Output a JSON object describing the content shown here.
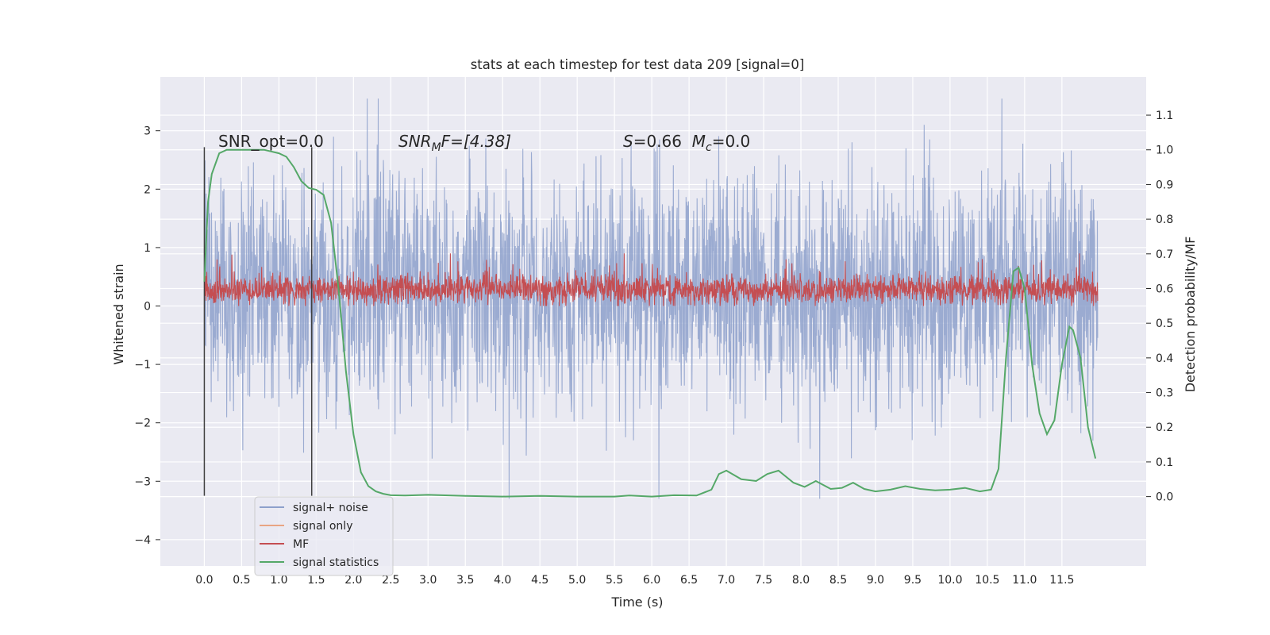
{
  "chart_data": {
    "type": "line",
    "title": "stats at each timestep for test data 209 [signal=0]",
    "xlabel": "Time (s)",
    "ylabel": "Whitened strain",
    "ylabel_right": "Detection probability/MF",
    "xlim": [
      -0.59,
      12.63
    ],
    "ylim": [
      -4.45,
      3.92
    ],
    "ylim_right": [
      -0.2,
      1.21
    ],
    "x_ticks": [
      0.0,
      0.5,
      1.0,
      1.5,
      2.0,
      2.5,
      3.0,
      3.5,
      4.0,
      4.5,
      5.0,
      5.5,
      6.0,
      6.5,
      7.0,
      7.5,
      8.0,
      8.5,
      9.0,
      9.5,
      10.0,
      10.5,
      11.0,
      11.5
    ],
    "x_tick_labels": [
      "0.0",
      "0.5",
      "1.0",
      "1.5",
      "2.0",
      "2.5",
      "3.0",
      "3.5",
      "4.0",
      "4.5",
      "5.0",
      "5.5",
      "6.0",
      "6.5",
      "7.0",
      "7.5",
      "8.0",
      "8.5",
      "9.0",
      "9.5",
      "10.0",
      "10.5",
      "11.0",
      "11.5"
    ],
    "y_ticks": [
      3,
      2,
      1,
      0,
      -1,
      -2,
      -3,
      -4
    ],
    "y_tick_labels": [
      "3",
      "2",
      "1",
      "0",
      "−1",
      "−2",
      "−3",
      "−4"
    ],
    "y_right_ticks": [
      1.1,
      1.0,
      0.9,
      0.8,
      0.7,
      0.6,
      0.5,
      0.4,
      0.3,
      0.2,
      0.1,
      0.0
    ],
    "y_right_tick_labels": [
      "1.1",
      "1.0",
      "0.9",
      "0.8",
      "0.7",
      "0.6",
      "0.5",
      "0.4",
      "0.3",
      "0.2",
      "0.1",
      "0.0"
    ],
    "grid": true,
    "legend_position": "lower-left",
    "series": [
      {
        "name": "signal+ noise",
        "color": "#8da0cb",
        "x_range": [
          0.0,
          11.98
        ],
        "envelope_y": [
          -3.3,
          3.55
        ],
        "typical_y": [
          -1.5,
          2.2
        ],
        "axis": "left"
      },
      {
        "name": "signal only",
        "color": "#e8a583",
        "values": [],
        "axis": "left"
      },
      {
        "name": "MF",
        "color": "#c44e52",
        "x_range": [
          0.0,
          11.98
        ],
        "envelope_y": [
          0.0,
          0.9
        ],
        "typical_y": [
          0.05,
          0.6
        ],
        "axis": "left"
      },
      {
        "name": "signal statistics",
        "color": "#55a868",
        "axis": "right",
        "x": [
          0.0,
          0.05,
          0.1,
          0.2,
          0.3,
          0.5,
          0.8,
          1.0,
          1.1,
          1.2,
          1.3,
          1.4,
          1.5,
          1.6,
          1.7,
          1.8,
          1.9,
          2.0,
          2.1,
          2.2,
          2.3,
          2.4,
          2.5,
          2.7,
          3.0,
          3.5,
          4.0,
          4.5,
          5.0,
          5.5,
          5.7,
          6.0,
          6.3,
          6.6,
          6.8,
          6.9,
          7.0,
          7.2,
          7.4,
          7.55,
          7.7,
          7.9,
          8.05,
          8.2,
          8.4,
          8.55,
          8.7,
          8.85,
          9.0,
          9.2,
          9.4,
          9.6,
          9.8,
          10.0,
          10.2,
          10.4,
          10.55,
          10.65,
          10.75,
          10.85,
          10.92,
          11.0,
          11.1,
          11.2,
          11.3,
          11.4,
          11.5,
          11.6,
          11.65,
          11.75,
          11.85,
          11.95
        ],
        "y": [
          0.62,
          0.85,
          0.93,
          0.99,
          1.0,
          1.0,
          1.0,
          0.99,
          0.98,
          0.95,
          0.91,
          0.89,
          0.885,
          0.87,
          0.79,
          0.6,
          0.36,
          0.18,
          0.07,
          0.03,
          0.015,
          0.008,
          0.004,
          0.003,
          0.005,
          0.002,
          0.0,
          0.002,
          0.0,
          0.0,
          0.003,
          0.0,
          0.004,
          0.003,
          0.02,
          0.065,
          0.075,
          0.05,
          0.045,
          0.065,
          0.075,
          0.04,
          0.028,
          0.045,
          0.022,
          0.025,
          0.04,
          0.022,
          0.015,
          0.02,
          0.03,
          0.022,
          0.018,
          0.02,
          0.025,
          0.015,
          0.02,
          0.08,
          0.4,
          0.65,
          0.66,
          0.6,
          0.38,
          0.24,
          0.18,
          0.22,
          0.38,
          0.49,
          0.48,
          0.4,
          0.2,
          0.11
        ]
      }
    ],
    "vlines": [
      0.0,
      1.44
    ],
    "annotations": [
      {
        "text": "SNR_opt=0.0",
        "x": 0.2,
        "y": 2.75
      },
      {
        "text_parts": [
          "SNR",
          "M",
          "F=[4.38]"
        ],
        "x": 2.6,
        "y": 2.75
      },
      {
        "text_parts": [
          "S",
          "=0.66  ",
          "M",
          "c",
          "=0.0"
        ],
        "x": 5.6,
        "y": 2.75
      }
    ]
  }
}
